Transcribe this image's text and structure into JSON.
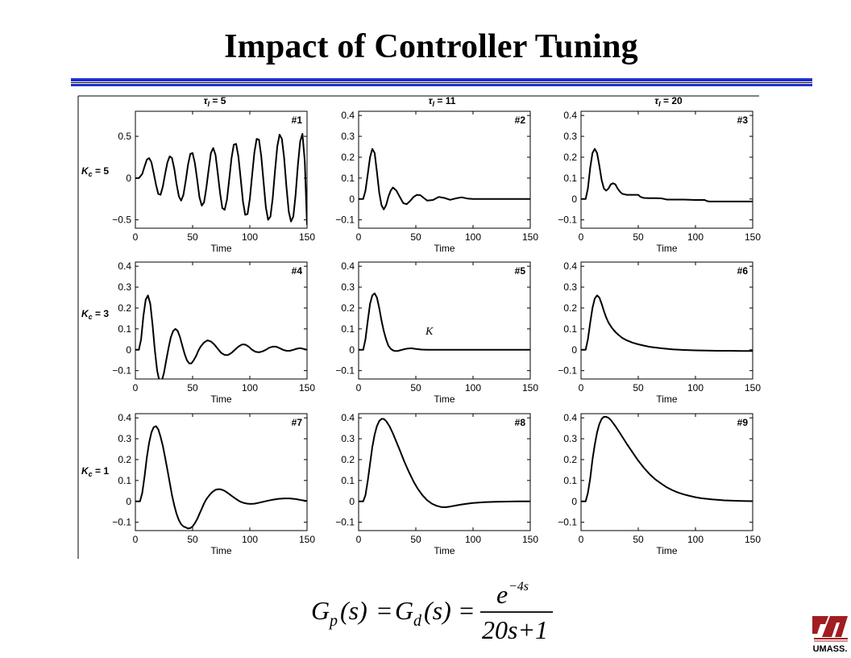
{
  "slide": {
    "title": "Impact of Controller Tuning",
    "colors": {
      "accent": "#1f2fd1",
      "logo": "#a11d21"
    },
    "logo_text": "UMASS."
  },
  "formula": {
    "lhs1": "G",
    "sub1": "p",
    "arg1": "(s)",
    "eq1": "=",
    "lhs2": "G",
    "sub2": "d",
    "arg2": "(s)",
    "eq2": "=",
    "num_base": "e",
    "num_exp": "−4s",
    "den": "20s+1"
  },
  "chart_data": {
    "type": "line",
    "col_labels": [
      "τI = 5",
      "τI = 11",
      "τI = 20"
    ],
    "row_labels": [
      "Kc = 5",
      "Kc = 3",
      "Kc = 1"
    ],
    "xlabel": "Time",
    "xlim": [
      0,
      150
    ],
    "xticks": [
      0,
      50,
      100,
      150
    ],
    "stray_label": "K",
    "panels": [
      {
        "id": "#1",
        "ylim": [
          -0.6,
          0.8
        ],
        "yticks": [
          -0.5,
          0,
          0.5
        ],
        "ytick_labels": [
          "−0.5",
          "0",
          "0.5"
        ],
        "x": [
          0,
          3,
          6,
          8,
          10,
          12,
          14,
          16,
          18,
          20,
          22,
          24,
          26,
          28,
          30,
          32,
          34,
          36,
          38,
          40,
          42,
          44,
          46,
          48,
          50,
          52,
          54,
          56,
          58,
          60,
          62,
          64,
          66,
          68,
          70,
          72,
          74,
          76,
          78,
          80,
          82,
          84,
          86,
          88,
          90,
          92,
          94,
          96,
          98,
          100,
          102,
          104,
          106,
          108,
          110,
          112,
          114,
          116,
          118,
          120,
          122,
          124,
          126,
          128,
          130,
          132,
          134,
          136,
          138,
          140,
          142,
          144,
          146,
          148,
          150
        ],
        "y": [
          0,
          0,
          0.05,
          0.14,
          0.22,
          0.24,
          0.19,
          0.06,
          -0.08,
          -0.19,
          -0.2,
          -0.1,
          0.05,
          0.19,
          0.26,
          0.24,
          0.11,
          -0.07,
          -0.22,
          -0.27,
          -0.2,
          -0.03,
          0.16,
          0.29,
          0.3,
          0.18,
          -0.02,
          -0.23,
          -0.33,
          -0.29,
          -0.12,
          0.1,
          0.3,
          0.36,
          0.28,
          0.06,
          -0.18,
          -0.36,
          -0.38,
          -0.26,
          -0.02,
          0.24,
          0.4,
          0.41,
          0.26,
          0,
          -0.28,
          -0.44,
          -0.43,
          -0.25,
          0.03,
          0.31,
          0.47,
          0.46,
          0.26,
          -0.04,
          -0.35,
          -0.5,
          -0.46,
          -0.24,
          0.08,
          0.38,
          0.52,
          0.47,
          0.24,
          -0.1,
          -0.4,
          -0.52,
          -0.46,
          -0.2,
          0.15,
          0.44,
          0.53,
          0.2,
          -0.56
        ]
      },
      {
        "id": "#2",
        "ylim": [
          -0.14,
          0.42
        ],
        "yticks": [
          -0.1,
          0,
          0.1,
          0.2,
          0.3,
          0.4
        ],
        "ytick_labels": [
          "−0.1",
          "0",
          "0.1",
          "0.2",
          "0.3",
          "0.4"
        ],
        "x": [
          0,
          4,
          6,
          8,
          10,
          12,
          14,
          16,
          18,
          20,
          22,
          24,
          26,
          28,
          30,
          33,
          36,
          39,
          42,
          45,
          48,
          51,
          54,
          57,
          60,
          65,
          70,
          75,
          80,
          85,
          90,
          95,
          100,
          110,
          120,
          130,
          140,
          150
        ],
        "y": [
          0,
          0,
          0.04,
          0.12,
          0.2,
          0.24,
          0.22,
          0.13,
          0.03,
          -0.03,
          -0.05,
          -0.03,
          0.01,
          0.04,
          0.055,
          0.04,
          0.01,
          -0.02,
          -0.025,
          -0.01,
          0.01,
          0.02,
          0.018,
          0.005,
          -0.008,
          -0.005,
          0.01,
          0.005,
          -0.004,
          0.003,
          0.008,
          0.002,
          0,
          0,
          0,
          0,
          0,
          0
        ]
      },
      {
        "id": "#3",
        "ylim": [
          -0.14,
          0.42
        ],
        "yticks": [
          -0.1,
          0,
          0.1,
          0.2,
          0.3,
          0.4
        ],
        "ytick_labels": [
          "−0.1",
          "0",
          "0.1",
          "0.2",
          "0.3",
          "0.4"
        ],
        "x": [
          0,
          4,
          6,
          8,
          10,
          12,
          14,
          16,
          18,
          20,
          22,
          24,
          26,
          28,
          30,
          32,
          34,
          36,
          40,
          45,
          50,
          52,
          55,
          60,
          65,
          70,
          73,
          75,
          80,
          90,
          100,
          108,
          110,
          112,
          120,
          130,
          140,
          150
        ],
        "y": [
          0,
          0,
          0.05,
          0.15,
          0.22,
          0.24,
          0.22,
          0.16,
          0.09,
          0.05,
          0.04,
          0.05,
          0.07,
          0.075,
          0.07,
          0.05,
          0.035,
          0.025,
          0.02,
          0.02,
          0.02,
          0.01,
          0.005,
          0.004,
          0.004,
          0.003,
          0,
          -0.003,
          -0.003,
          -0.003,
          -0.005,
          -0.005,
          -0.01,
          -0.012,
          -0.012,
          -0.012,
          -0.012,
          -0.012
        ]
      },
      {
        "id": "#4",
        "ylim": [
          -0.14,
          0.42
        ],
        "yticks": [
          -0.1,
          0,
          0.1,
          0.2,
          0.3,
          0.4
        ],
        "ytick_labels": [
          "−0.1",
          "0",
          "0.1",
          "0.2",
          "0.3",
          "0.4"
        ],
        "x": [
          0,
          3,
          5,
          7,
          9,
          11,
          13,
          15,
          17,
          19,
          21,
          23,
          25,
          27,
          29,
          31,
          33,
          35,
          37,
          39,
          41,
          43,
          45,
          47,
          49,
          51,
          53,
          55,
          57,
          60,
          63,
          66,
          69,
          72,
          75,
          78,
          81,
          84,
          87,
          90,
          93,
          96,
          99,
          102,
          105,
          108,
          111,
          114,
          117,
          120,
          123,
          126,
          129,
          132,
          135,
          138,
          141,
          144,
          147,
          150
        ],
        "y": [
          0,
          0,
          0.05,
          0.16,
          0.24,
          0.26,
          0.22,
          0.12,
          0,
          -0.1,
          -0.15,
          -0.15,
          -0.11,
          -0.05,
          0.01,
          0.06,
          0.09,
          0.1,
          0.09,
          0.06,
          0.02,
          -0.02,
          -0.05,
          -0.065,
          -0.065,
          -0.05,
          -0.03,
          -0.005,
          0.015,
          0.035,
          0.045,
          0.04,
          0.025,
          0.005,
          -0.015,
          -0.025,
          -0.025,
          -0.015,
          0,
          0.015,
          0.025,
          0.025,
          0.015,
          0,
          -0.01,
          -0.012,
          -0.008,
          0,
          0.01,
          0.015,
          0.015,
          0.008,
          0,
          -0.005,
          -0.005,
          0,
          0.005,
          0.008,
          0.004,
          0
        ]
      },
      {
        "id": "#5",
        "ylim": [
          -0.14,
          0.42
        ],
        "yticks": [
          -0.1,
          0,
          0.1,
          0.2,
          0.3,
          0.4
        ],
        "ytick_labels": [
          "−0.1",
          "0",
          "0.1",
          "0.2",
          "0.3",
          "0.4"
        ],
        "x": [
          0,
          4,
          6,
          8,
          10,
          12,
          14,
          16,
          18,
          20,
          22,
          24,
          26,
          28,
          30,
          32,
          34,
          36,
          38,
          40,
          43,
          46,
          50,
          55,
          60,
          70,
          80,
          100,
          120,
          150
        ],
        "y": [
          0,
          0,
          0.05,
          0.14,
          0.22,
          0.26,
          0.27,
          0.25,
          0.2,
          0.14,
          0.09,
          0.05,
          0.02,
          0.005,
          -0.003,
          -0.006,
          -0.006,
          -0.003,
          0,
          0.003,
          0.006,
          0.007,
          0.004,
          0.001,
          0,
          0,
          0,
          0,
          0,
          0
        ]
      },
      {
        "id": "#6",
        "ylim": [
          -0.14,
          0.42
        ],
        "yticks": [
          -0.1,
          0,
          0.1,
          0.2,
          0.3,
          0.4
        ],
        "ytick_labels": [
          "−0.1",
          "0",
          "0.1",
          "0.2",
          "0.3",
          "0.4"
        ],
        "x": [
          0,
          4,
          6,
          8,
          10,
          12,
          14,
          16,
          18,
          20,
          22,
          24,
          27,
          30,
          33,
          36,
          40,
          45,
          50,
          55,
          60,
          70,
          80,
          90,
          100,
          110,
          120,
          130,
          140,
          150
        ],
        "y": [
          0,
          0,
          0.05,
          0.13,
          0.2,
          0.245,
          0.26,
          0.25,
          0.22,
          0.185,
          0.155,
          0.13,
          0.105,
          0.085,
          0.07,
          0.057,
          0.045,
          0.034,
          0.026,
          0.02,
          0.014,
          0.007,
          0.002,
          -0.001,
          -0.003,
          -0.004,
          -0.005,
          -0.005,
          -0.006,
          -0.006
        ]
      },
      {
        "id": "#7",
        "ylim": [
          -0.14,
          0.42
        ],
        "yticks": [
          -0.1,
          0,
          0.1,
          0.2,
          0.3,
          0.4
        ],
        "ytick_labels": [
          "−0.1",
          "0",
          "0.1",
          "0.2",
          "0.3",
          "0.4"
        ],
        "x": [
          0,
          4,
          6,
          8,
          10,
          12,
          14,
          16,
          18,
          20,
          22,
          24,
          26,
          28,
          30,
          32,
          34,
          36,
          38,
          40,
          42,
          44,
          46,
          48,
          50,
          52,
          54,
          56,
          58,
          60,
          62,
          64,
          66,
          68,
          70,
          72,
          74,
          76,
          78,
          80,
          82,
          84,
          86,
          88,
          90,
          92,
          95,
          98,
          101,
          104,
          107,
          110,
          115,
          120,
          125,
          130,
          135,
          140,
          145,
          150
        ],
        "y": [
          0,
          0,
          0.04,
          0.12,
          0.21,
          0.28,
          0.33,
          0.355,
          0.36,
          0.345,
          0.31,
          0.265,
          0.21,
          0.15,
          0.09,
          0.03,
          -0.02,
          -0.06,
          -0.09,
          -0.11,
          -0.12,
          -0.125,
          -0.13,
          -0.128,
          -0.12,
          -0.105,
          -0.085,
          -0.06,
          -0.035,
          -0.01,
          0.01,
          0.025,
          0.038,
          0.048,
          0.055,
          0.058,
          0.058,
          0.055,
          0.05,
          0.043,
          0.035,
          0.027,
          0.019,
          0.011,
          0.004,
          -0.002,
          -0.008,
          -0.011,
          -0.012,
          -0.011,
          -0.008,
          -0.004,
          0.002,
          0.008,
          0.012,
          0.014,
          0.014,
          0.011,
          0.006,
          0.002
        ]
      },
      {
        "id": "#8",
        "ylim": [
          -0.14,
          0.42
        ],
        "yticks": [
          -0.1,
          0,
          0.1,
          0.2,
          0.3,
          0.4
        ],
        "ytick_labels": [
          "−0.1",
          "0",
          "0.1",
          "0.2",
          "0.3",
          "0.4"
        ],
        "x": [
          0,
          4,
          6,
          8,
          10,
          12,
          14,
          16,
          18,
          20,
          22,
          24,
          27,
          30,
          33,
          36,
          40,
          44,
          48,
          52,
          56,
          60,
          64,
          68,
          72,
          76,
          80,
          85,
          90,
          95,
          100,
          110,
          120,
          130,
          140,
          150
        ],
        "y": [
          0,
          0,
          0.03,
          0.1,
          0.18,
          0.26,
          0.32,
          0.36,
          0.385,
          0.395,
          0.395,
          0.385,
          0.36,
          0.325,
          0.285,
          0.245,
          0.19,
          0.14,
          0.095,
          0.058,
          0.028,
          0.005,
          -0.011,
          -0.021,
          -0.027,
          -0.028,
          -0.025,
          -0.02,
          -0.015,
          -0.011,
          -0.008,
          -0.004,
          -0.002,
          -0.001,
          0,
          0
        ]
      },
      {
        "id": "#9",
        "ylim": [
          -0.14,
          0.42
        ],
        "yticks": [
          -0.1,
          0,
          0.1,
          0.2,
          0.3,
          0.4
        ],
        "ytick_labels": [
          "−0.1",
          "0",
          "0.1",
          "0.2",
          "0.3",
          "0.4"
        ],
        "x": [
          0,
          4,
          6,
          8,
          10,
          12,
          14,
          16,
          18,
          20,
          22,
          24,
          26,
          28,
          30,
          33,
          36,
          40,
          45,
          50,
          55,
          60,
          65,
          70,
          75,
          80,
          85,
          90,
          95,
          100,
          105,
          110,
          115,
          120,
          125,
          130,
          140,
          150
        ],
        "y": [
          0,
          0,
          0.04,
          0.11,
          0.2,
          0.27,
          0.33,
          0.37,
          0.395,
          0.405,
          0.405,
          0.4,
          0.39,
          0.375,
          0.36,
          0.335,
          0.31,
          0.275,
          0.235,
          0.195,
          0.16,
          0.13,
          0.105,
          0.085,
          0.067,
          0.053,
          0.042,
          0.033,
          0.026,
          0.02,
          0.015,
          0.012,
          0.009,
          0.007,
          0.005,
          0.004,
          0.002,
          0.001
        ]
      }
    ]
  }
}
